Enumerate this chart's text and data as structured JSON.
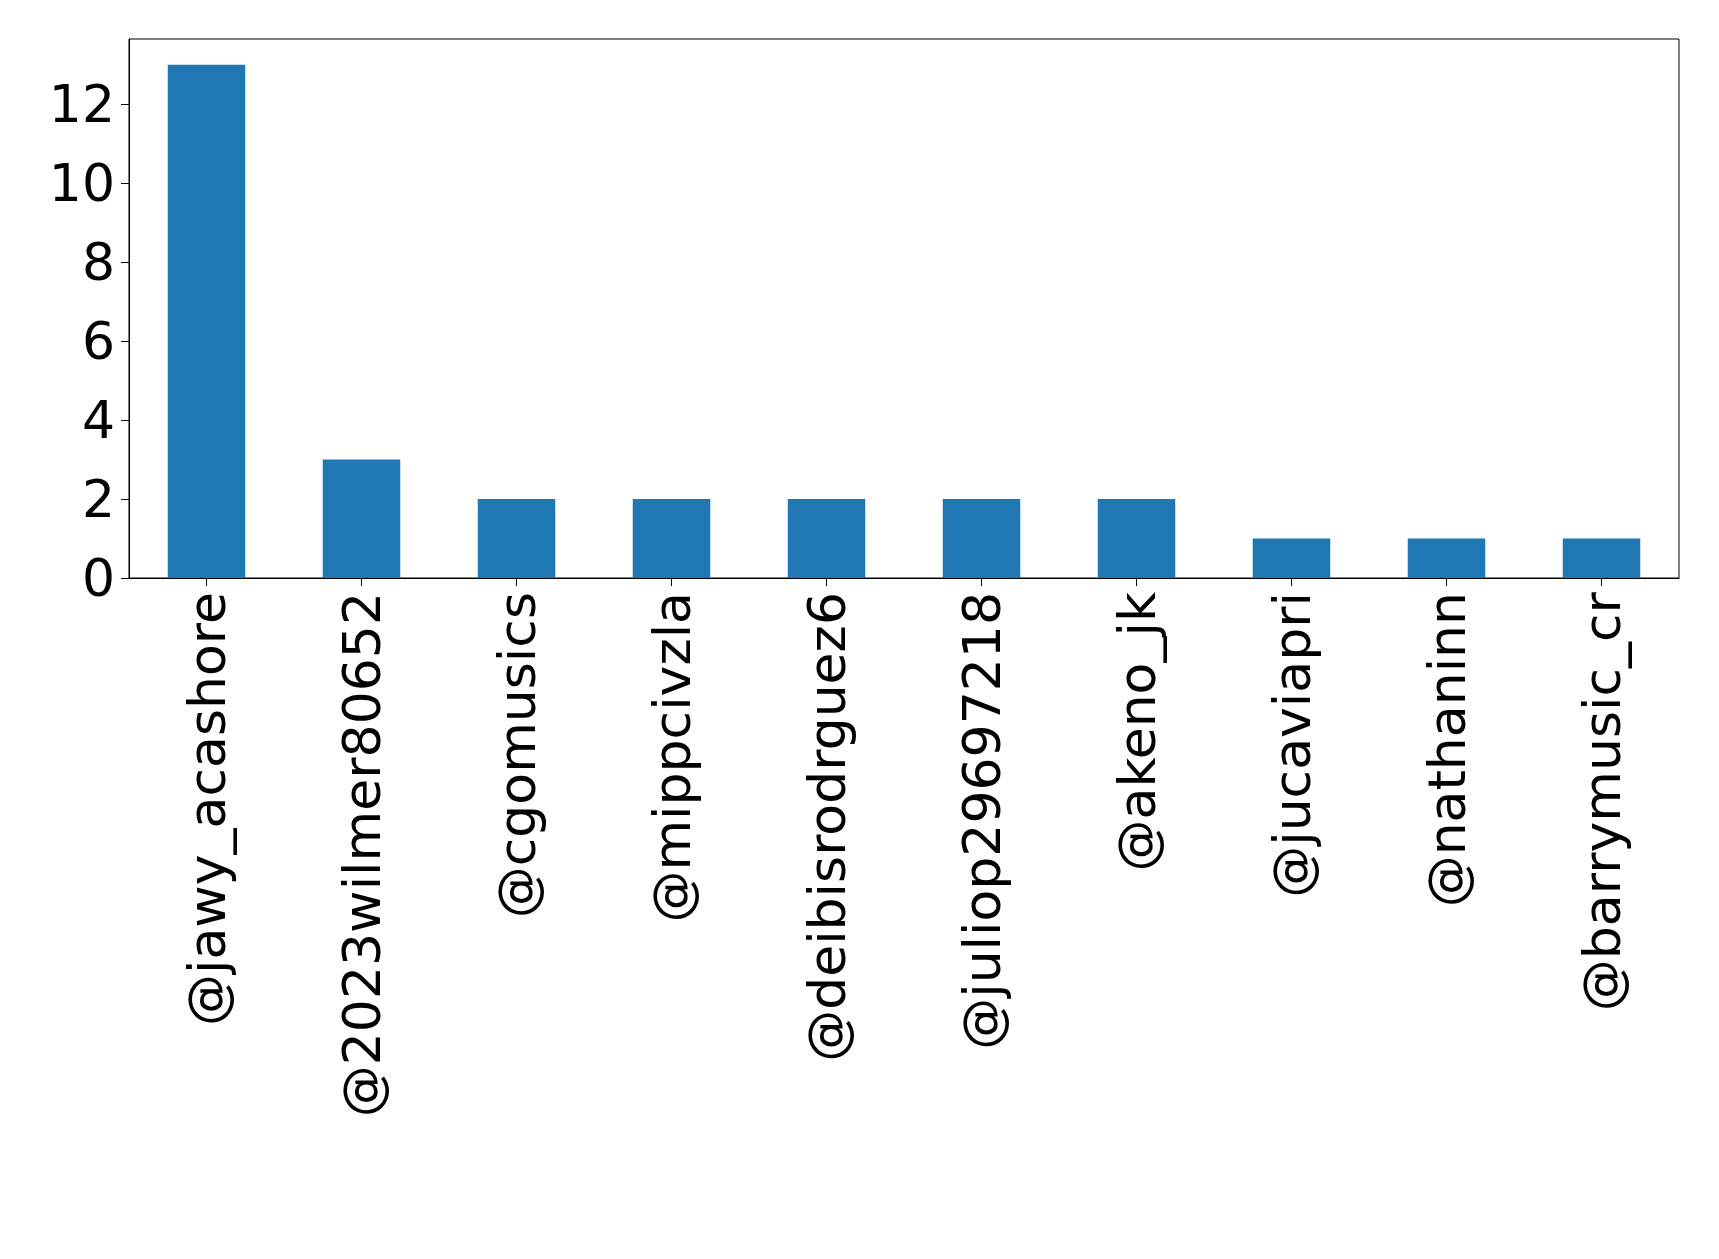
{
  "chart_data": {
    "type": "bar",
    "categories": [
      "@jawy_acashore",
      "@2023wilmer80652",
      "@cgomusics",
      "@mippcivzla",
      "@deibisrodrguez6",
      "@juliop29697218",
      "@akeno_jk",
      "@jucaviapri",
      "@nathaninn",
      "@barrymusic_cr"
    ],
    "values": [
      13,
      3,
      2,
      2,
      2,
      2,
      2,
      1,
      1,
      1
    ],
    "color": "#1f77b4",
    "ylim": [
      0,
      13.65
    ],
    "yticks": [
      0,
      2,
      4,
      6,
      8,
      10,
      12
    ]
  }
}
